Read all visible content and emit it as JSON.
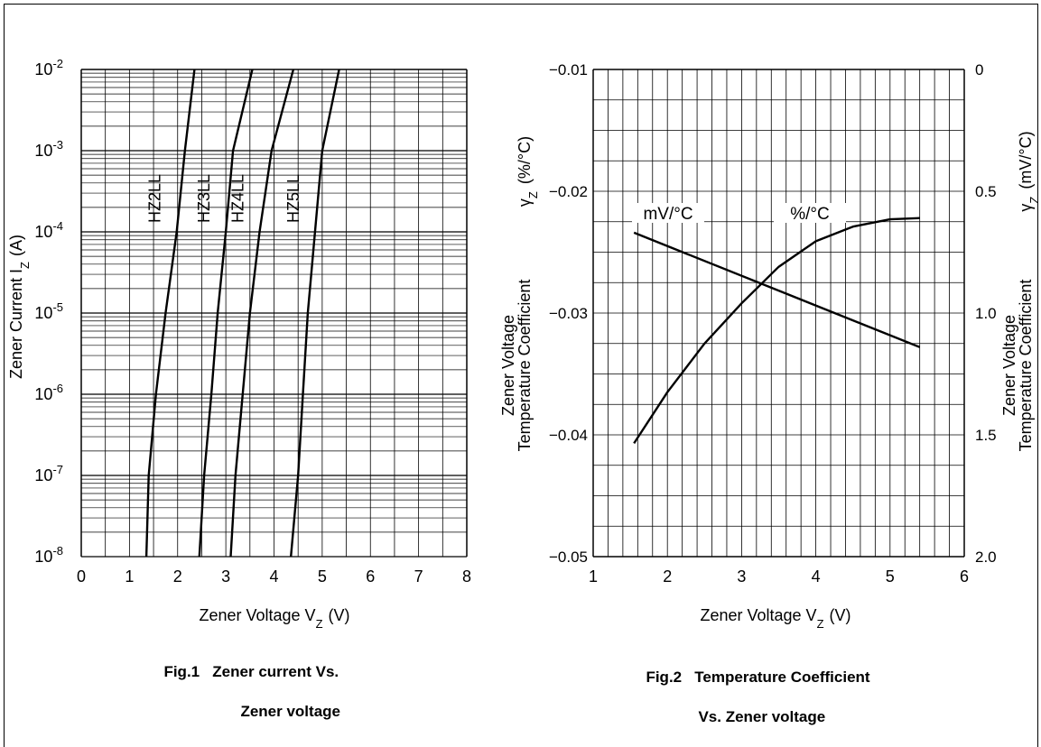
{
  "chart_data": [
    {
      "type": "line",
      "title": "",
      "xlabel": "Zener Voltage V",
      "xlabel_sub": "Z",
      "xlabel_unit": "(V)",
      "ylabel": "Zener Current  I",
      "ylabel_sub": "Z",
      "ylabel_unit": "(A)",
      "xlim": [
        0,
        8
      ],
      "yscale": "log",
      "ylim": [
        1e-08,
        0.01
      ],
      "grid": true,
      "xticks": [
        "0",
        "1",
        "2",
        "3",
        "4",
        "5",
        "6",
        "7",
        "8"
      ],
      "yticks": [
        {
          "base": "10",
          "exp": "-8"
        },
        {
          "base": "10",
          "exp": "-7"
        },
        {
          "base": "10",
          "exp": "-6"
        },
        {
          "base": "10",
          "exp": "-5"
        },
        {
          "base": "10",
          "exp": "-4"
        },
        {
          "base": "10",
          "exp": "-3"
        },
        {
          "base": "10",
          "exp": "-2"
        }
      ],
      "series": [
        {
          "name": "HZ2LL",
          "x": [
            1.35,
            1.4,
            1.55,
            1.75,
            1.98,
            2.15,
            2.35
          ],
          "y": [
            1e-08,
            1e-07,
            1e-06,
            1e-05,
            0.0001,
            0.001,
            0.01
          ]
        },
        {
          "name": "HZ3LL",
          "x": [
            2.45,
            2.55,
            2.7,
            2.83,
            3.0,
            3.15,
            3.55
          ],
          "y": [
            1e-08,
            1e-07,
            1e-06,
            1e-05,
            0.0001,
            0.001,
            0.01
          ]
        },
        {
          "name": "HZ4LL",
          "x": [
            3.1,
            3.2,
            3.35,
            3.5,
            3.7,
            3.95,
            4.4
          ],
          "y": [
            1e-08,
            1e-07,
            1e-06,
            1e-05,
            0.0001,
            0.001,
            0.01
          ]
        },
        {
          "name": "HZ5LL",
          "x": [
            4.35,
            4.5,
            4.6,
            4.7,
            4.85,
            5.0,
            5.35
          ],
          "y": [
            1e-08,
            1e-07,
            1e-06,
            1e-05,
            0.0001,
            0.001,
            0.01
          ]
        }
      ],
      "caption_num": "Fig.1",
      "caption_line1": "Zener current Vs.",
      "caption_line2": "Zener voltage"
    },
    {
      "type": "line",
      "title": "",
      "xlabel": "Zener Voltage V",
      "xlabel_sub": "Z",
      "xlabel_unit": "(V)",
      "ylabel_left_line1": "Zener Voltage",
      "ylabel_left_line2": "Temperature Coefficient",
      "ylabel_left_symbol": "γ",
      "ylabel_left_sub": "Z",
      "ylabel_left_unit": "(%/°C)",
      "ylabel_right_line1": "Zener Voltage",
      "ylabel_right_line2": "Temperature Coefficient",
      "ylabel_right_symbol": "γ",
      "ylabel_right_sub": "Z",
      "ylabel_right_unit": "(mV/°C)",
      "xlim": [
        1,
        6
      ],
      "ylim_left": [
        -0.05,
        -0.01
      ],
      "ylim_right": [
        2.0,
        0
      ],
      "grid": true,
      "xticks": [
        "1",
        "2",
        "3",
        "4",
        "5",
        "6"
      ],
      "yticks_left": [
        "−0.01",
        "−0.02",
        "−0.03",
        "−0.04",
        "−0.05"
      ],
      "yticks_right": [
        "0",
        "0.5",
        "1.0",
        "1.5",
        "2.0"
      ],
      "series": [
        {
          "name": "%/°C",
          "axis": "left",
          "x": [
            1.55,
            2.0,
            2.5,
            3.0,
            3.5,
            4.0,
            4.5,
            5.0,
            5.4
          ],
          "y": [
            -0.0407,
            -0.0365,
            -0.0325,
            -0.0292,
            -0.0262,
            -0.0241,
            -0.0229,
            -0.0223,
            -0.0222
          ]
        },
        {
          "name": "mV/°C",
          "axis": "right",
          "x": [
            1.55,
            5.4
          ],
          "y": [
            0.67,
            1.14
          ]
        }
      ],
      "caption_num": "Fig.2",
      "caption_line1": "Temperature Coefficient",
      "caption_line2": "Vs. Zener voltage"
    }
  ]
}
